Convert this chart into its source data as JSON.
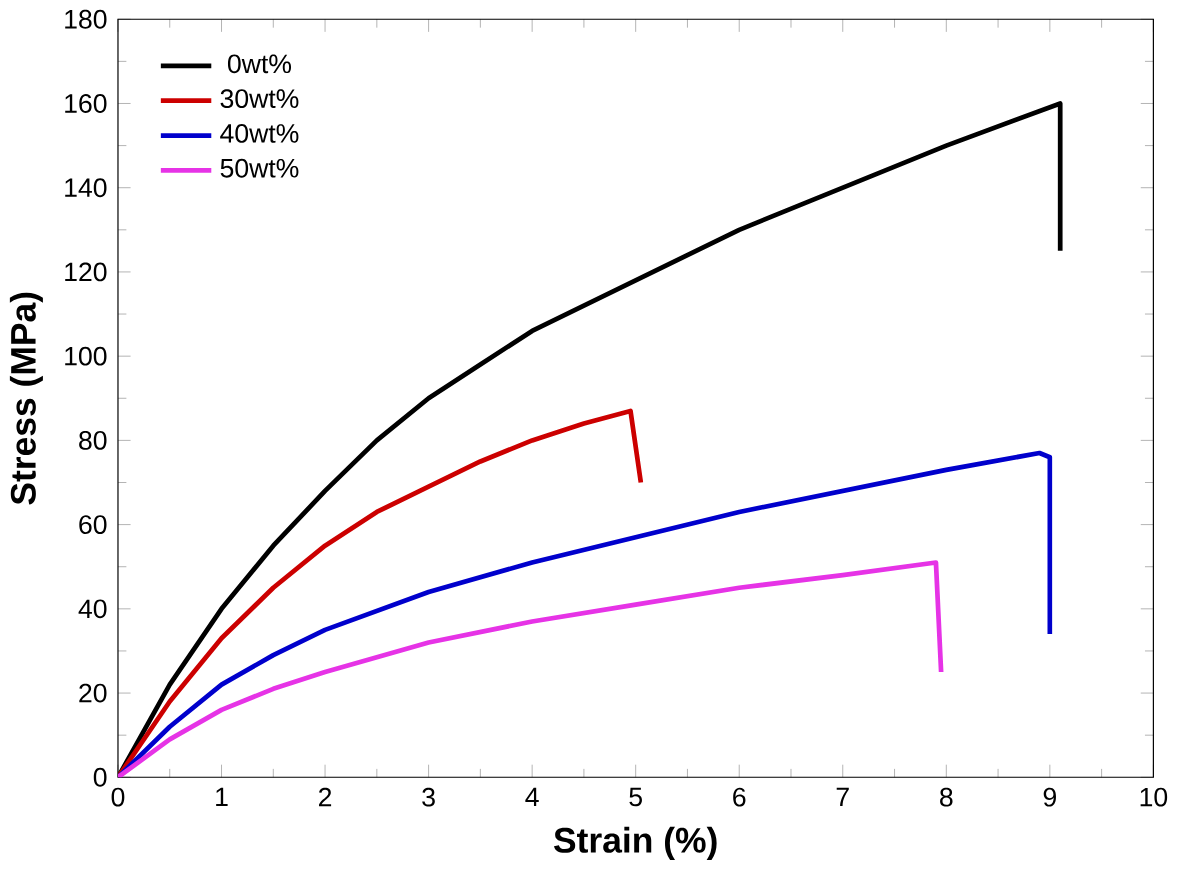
{
  "chart_data": {
    "type": "line",
    "xlabel": "Strain (%)",
    "ylabel": "Stress (MPa)",
    "xlim": [
      0,
      10
    ],
    "ylim": [
      0,
      180
    ],
    "xticks": [
      0,
      1,
      2,
      3,
      4,
      5,
      6,
      7,
      8,
      9,
      10
    ],
    "yticks": [
      0,
      20,
      40,
      60,
      80,
      100,
      120,
      140,
      160,
      180
    ],
    "legend": "top left",
    "grid": false,
    "marker": "none",
    "line_style": "solid",
    "series": [
      {
        "name": "  0wt%",
        "color": "#000000",
        "x": [
          0,
          0.5,
          1,
          1.5,
          2,
          2.5,
          3,
          3.5,
          4,
          5,
          6,
          7,
          8,
          9.1,
          9.1
        ],
        "values": [
          0,
          22,
          40,
          55,
          68,
          80,
          90,
          98,
          106,
          118,
          130,
          140,
          150,
          160,
          125
        ]
      },
      {
        "name": "30wt%",
        "color": "#cc0000",
        "x": [
          0,
          0.5,
          1,
          1.5,
          2,
          2.5,
          3,
          3.5,
          4,
          4.5,
          4.95,
          5.05
        ],
        "values": [
          0,
          18,
          33,
          45,
          55,
          63,
          69,
          75,
          80,
          84,
          87,
          70
        ]
      },
      {
        "name": "40wt%",
        "color": "#0000cc",
        "x": [
          0,
          0.5,
          1,
          1.5,
          2,
          3,
          4,
          5,
          6,
          7,
          8,
          8.9,
          9,
          9
        ],
        "values": [
          0,
          12,
          22,
          29,
          35,
          44,
          51,
          57,
          63,
          68,
          73,
          77,
          76,
          34
        ]
      },
      {
        "name": "50wt%",
        "color": "#e633e6",
        "x": [
          0,
          0.5,
          1,
          1.5,
          2,
          3,
          4,
          5,
          6,
          7,
          7.9,
          7.95
        ],
        "values": [
          0,
          9,
          16,
          21,
          25,
          32,
          37,
          41,
          45,
          48,
          51,
          25
        ]
      }
    ]
  }
}
